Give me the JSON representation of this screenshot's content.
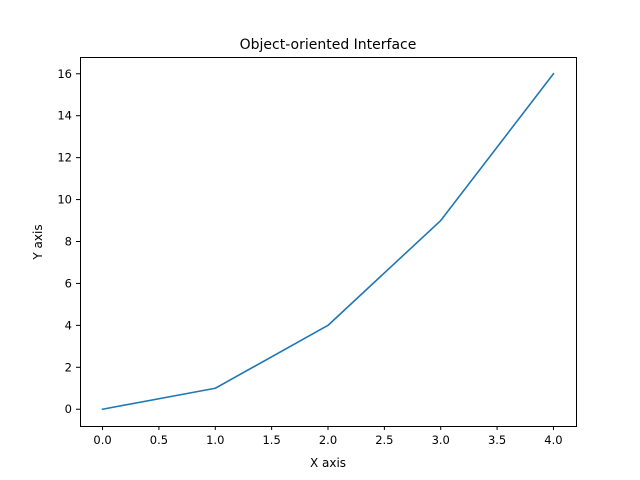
{
  "chart_data": {
    "type": "line",
    "title": "Object-oriented Interface",
    "xlabel": "X axis",
    "ylabel": "Y axis",
    "x": [
      0,
      1,
      2,
      3,
      4
    ],
    "series": [
      {
        "values": [
          0,
          1,
          4,
          9,
          16
        ],
        "color": "#1f77b4"
      }
    ],
    "xlim": [
      -0.2,
      4.2
    ],
    "ylim": [
      -0.8,
      16.8
    ],
    "xticks": [
      0,
      0.5,
      1,
      1.5,
      2,
      2.5,
      3,
      3.5,
      4
    ],
    "xtick_labels": [
      "0.0",
      "0.5",
      "1.0",
      "1.5",
      "2.0",
      "2.5",
      "3.0",
      "3.5",
      "4.0"
    ],
    "yticks": [
      0,
      2,
      4,
      6,
      8,
      10,
      12,
      14,
      16
    ],
    "ytick_labels": [
      "0",
      "2",
      "4",
      "6",
      "8",
      "10",
      "12",
      "14",
      "16"
    ],
    "grid": false,
    "legend": "none"
  }
}
